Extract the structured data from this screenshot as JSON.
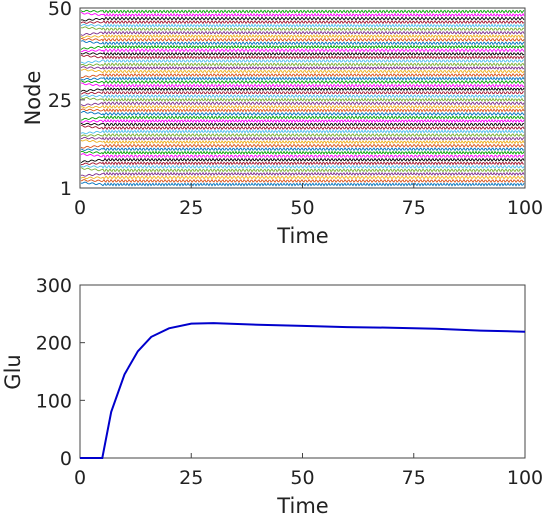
{
  "chart_data": [
    {
      "type": "line",
      "title": "",
      "xlabel": "Time",
      "ylabel": "Node",
      "xlim": [
        0,
        100
      ],
      "ylim": [
        1,
        50
      ],
      "xticks": [
        "0",
        "25",
        "50",
        "75",
        "100"
      ],
      "yticks": [
        "1",
        "25",
        "50"
      ],
      "grid": false,
      "legend": "none",
      "series_count": 50,
      "node_colors": [
        "#0072BD",
        "#D95319",
        "#EDB120",
        "#7E2F8E",
        "#77AC30",
        "#4DBEEE",
        "#A2142F",
        "#000000",
        "#FF00FF",
        "#00A000"
      ],
      "description_values": "50 oscillating node traces with a transient before t=5 then stable periodic oscillation"
    },
    {
      "type": "line",
      "title": "",
      "xlabel": "Time",
      "ylabel": "Glu",
      "xlim": [
        0,
        100
      ],
      "ylim": [
        0,
        300
      ],
      "xticks": [
        "0",
        "25",
        "50",
        "75",
        "100"
      ],
      "yticks": [
        "0",
        "100",
        "200",
        "300"
      ],
      "grid": false,
      "legend": "none",
      "series": [
        {
          "color": "#0000CC",
          "x": [
            0,
            5,
            7,
            10,
            13,
            16,
            20,
            25,
            30,
            40,
            50,
            60,
            70,
            80,
            90,
            100
          ],
          "values": [
            0,
            0,
            80,
            145,
            185,
            210,
            225,
            233,
            234,
            231,
            229,
            227,
            226,
            224,
            221,
            219
          ]
        }
      ]
    }
  ]
}
